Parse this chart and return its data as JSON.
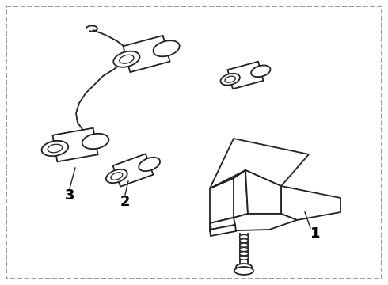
{
  "background_color": "#ffffff",
  "border_color": "#888888",
  "line_color": "#222222",
  "label_color": "#000000",
  "fig_width": 4.9,
  "fig_height": 3.6,
  "dpi": 100
}
